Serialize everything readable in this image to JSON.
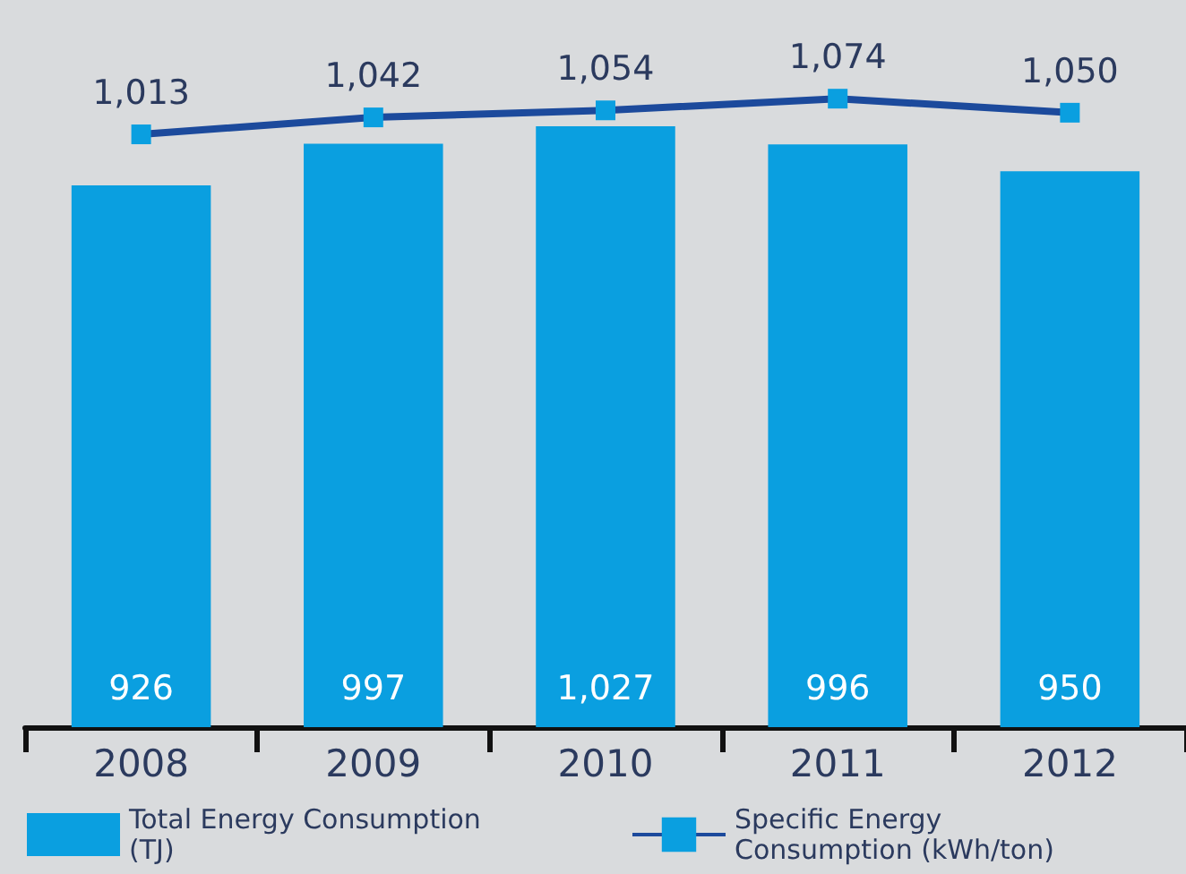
{
  "chart_data": {
    "type": "bar",
    "categories": [
      "2008",
      "2009",
      "2010",
      "2011",
      "2012"
    ],
    "series": [
      {
        "name": "Total Energy Consumption (TJ)",
        "color": "#0a9fe0",
        "values": [
          926,
          997,
          1027,
          996,
          950
        ],
        "value_labels": [
          "926",
          "997",
          "1,027",
          "996",
          "950"
        ]
      },
      {
        "name": "Specific Energy Consumption (kWh/ton)",
        "type": "line",
        "color": "#1c4a9c",
        "marker": "square",
        "values": [
          1013,
          1042,
          1054,
          1074,
          1050
        ],
        "value_labels": [
          "1,013",
          "1,042",
          "1,054",
          "1,074",
          "1,050"
        ]
      }
    ],
    "tick_labels": "x",
    "legend": "bottom",
    "line_style": "solid"
  }
}
